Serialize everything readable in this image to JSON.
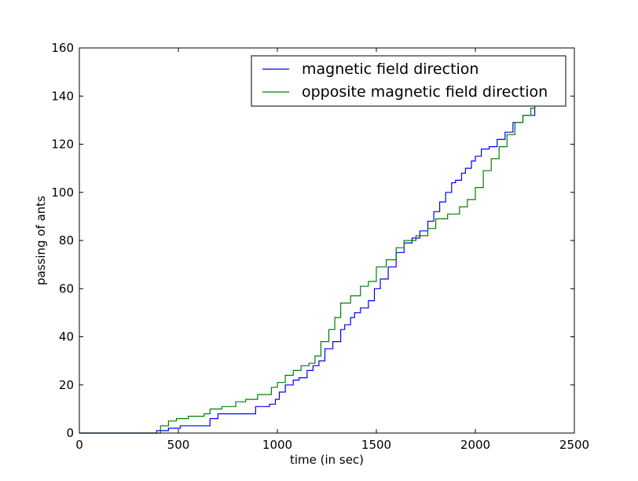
{
  "chart_data": {
    "type": "line",
    "title": "",
    "xlabel": "time (in sec)",
    "ylabel": "passing of ants",
    "xlim": [
      0,
      2500
    ],
    "ylim": [
      0,
      160
    ],
    "xticks": [
      0,
      500,
      1000,
      1500,
      2000,
      2500
    ],
    "yticks": [
      0,
      20,
      40,
      60,
      80,
      100,
      120,
      140,
      160
    ],
    "grid": false,
    "legend_position": "top-right",
    "series": [
      {
        "name": "magnetic field direction",
        "color": "#0000ff",
        "step": true,
        "x": [
          0,
          380,
          390,
          450,
          510,
          640,
          660,
          700,
          870,
          890,
          960,
          990,
          1010,
          1040,
          1080,
          1110,
          1150,
          1180,
          1210,
          1240,
          1280,
          1320,
          1340,
          1370,
          1390,
          1420,
          1460,
          1490,
          1520,
          1560,
          1600,
          1640,
          1680,
          1720,
          1760,
          1790,
          1820,
          1850,
          1880,
          1900,
          1930,
          1950,
          1980,
          2000,
          2030,
          2070,
          2110,
          2150,
          2190,
          2240,
          2300,
          2320
        ],
        "y": [
          0,
          0,
          1,
          2,
          3,
          3,
          6,
          8,
          8,
          11,
          12,
          14,
          17,
          20,
          22,
          23,
          26,
          28,
          30,
          35,
          38,
          43,
          45,
          48,
          50,
          52,
          55,
          60,
          64,
          69,
          75,
          79,
          81,
          84,
          88,
          92,
          96,
          100,
          104,
          105,
          108,
          110,
          113,
          115,
          118,
          119,
          122,
          125,
          129,
          132,
          136,
          136
        ]
      },
      {
        "name": "opposite magnetic field direction",
        "color": "#008000",
        "step": true,
        "x": [
          0,
          380,
          410,
          450,
          490,
          550,
          630,
          660,
          720,
          790,
          840,
          900,
          970,
          1000,
          1040,
          1080,
          1120,
          1160,
          1190,
          1220,
          1260,
          1290,
          1320,
          1370,
          1420,
          1460,
          1500,
          1550,
          1600,
          1640,
          1700,
          1760,
          1800,
          1860,
          1920,
          1960,
          2000,
          2040,
          2080,
          2120,
          2160,
          2200,
          2240,
          2280,
          2300,
          2320
        ],
        "y": [
          0,
          0,
          3,
          5,
          6,
          7,
          8,
          10,
          11,
          13,
          14,
          16,
          19,
          21,
          24,
          26,
          28,
          29,
          32,
          38,
          43,
          48,
          54,
          57,
          61,
          63,
          69,
          72,
          77,
          80,
          82,
          85,
          89,
          91,
          94,
          97,
          102,
          109,
          114,
          119,
          124,
          129,
          132,
          135,
          138,
          138
        ]
      }
    ]
  }
}
